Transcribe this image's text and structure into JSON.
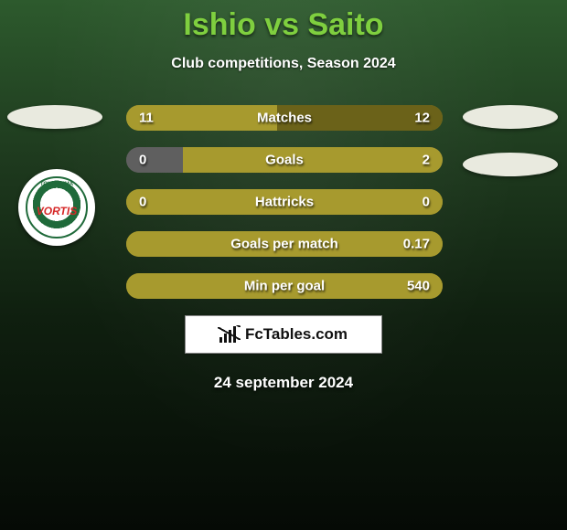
{
  "title": "Ishio vs Saito",
  "subtitle": "Club competitions, Season 2024",
  "date_text": "24 september 2024",
  "brand": {
    "text": "FcTables.com"
  },
  "colors": {
    "title": "#7fcf3f",
    "ellipse": "#e9eadf",
    "bar_full": "#a79a2e",
    "bar_empty": "#5f5f5f",
    "bar_right_dark": "#6b6219"
  },
  "team_logo": {
    "top_text": "TOKUSHIMA",
    "main_text": "VORTIS"
  },
  "stats": [
    {
      "label": "Matches",
      "left_value_text": "11",
      "right_value_text": "12",
      "left_value": 11,
      "right_value": 12,
      "left_pct": 47.8,
      "right_pct": 52.2,
      "left_color": "#a79a2e",
      "right_color": "#6b6219"
    },
    {
      "label": "Goals",
      "left_value_text": "0",
      "right_value_text": "2",
      "left_value": 0,
      "right_value": 2,
      "left_pct": 18,
      "right_pct": 82,
      "left_color": "#5f5f5f",
      "right_color": "#a79a2e"
    },
    {
      "label": "Hattricks",
      "left_value_text": "0",
      "right_value_text": "0",
      "left_value": 0,
      "right_value": 0,
      "left_pct": 100,
      "right_pct": 0,
      "left_color": "#a79a2e",
      "right_color": "#a79a2e"
    },
    {
      "label": "Goals per match",
      "left_value_text": "",
      "right_value_text": "0.17",
      "left_value": 0,
      "right_value": 0.17,
      "left_pct": 100,
      "right_pct": 0,
      "left_color": "#a79a2e",
      "right_color": "#a79a2e"
    },
    {
      "label": "Min per goal",
      "left_value_text": "",
      "right_value_text": "540",
      "left_value": 0,
      "right_value": 540,
      "left_pct": 100,
      "right_pct": 0,
      "left_color": "#a79a2e",
      "right_color": "#a79a2e"
    }
  ]
}
